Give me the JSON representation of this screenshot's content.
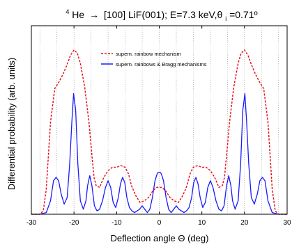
{
  "chart_data": {
    "type": "line",
    "title": {
      "isotope_superscript": "4",
      "species": "He",
      "arrow": "→",
      "system": "[100] LiF(001); E=7.3 keV,θ",
      "angle_subscript": "i",
      "angle_value": "=0.71º"
    },
    "xlabel": "Deflection angle Θ (deg)",
    "ylabel": "Differential probability (arb. units)",
    "xlim": [
      -30,
      30
    ],
    "ylim": [
      0,
      1
    ],
    "xticks": [
      -30,
      -20,
      -10,
      0,
      10,
      20,
      30
    ],
    "xtick_labels": [
      "-30",
      "-20",
      "-10",
      "0",
      "10",
      "20",
      "30"
    ],
    "yticks_labeled": false,
    "gridlines_x": [
      -28,
      -24,
      -20,
      -16,
      -12,
      -8,
      -4,
      0,
      4,
      8,
      12,
      16,
      20,
      24,
      28
    ],
    "legend_position": "top-center",
    "series": [
      {
        "name": "supern. rainbow mechanism",
        "color": "#e8141e",
        "style": "dashed",
        "x": [
          -30,
          -28,
          -27.2,
          -26.5,
          -25.5,
          -24.5,
          -23.5,
          -22.5,
          -21.5,
          -20.8,
          -20,
          -19.2,
          -18.5,
          -17.5,
          -16.5,
          -15.8,
          -15.3,
          -14.8,
          -14,
          -13,
          -12,
          -11,
          -10,
          -9,
          -8,
          -7.2,
          -6.5,
          -5.5,
          -4.5,
          -3.5,
          -2.5,
          -1.5,
          -0.6,
          0,
          0.6,
          1.5,
          2.5,
          3.5,
          4.5,
          5.5,
          6.5,
          7.2,
          8,
          9,
          10,
          11,
          12,
          13,
          14,
          14.8,
          15.3,
          15.8,
          16.5,
          17.5,
          18.5,
          19.2,
          20,
          20.8,
          21.5,
          22.5,
          23.5,
          24.5,
          25.5,
          26.5,
          27.2,
          28,
          30
        ],
        "y": [
          0,
          0,
          0.02,
          0.15,
          0.55,
          0.75,
          0.79,
          0.84,
          0.9,
          0.95,
          0.98,
          0.96,
          0.9,
          0.76,
          0.55,
          0.35,
          0.22,
          0.17,
          0.16,
          0.22,
          0.26,
          0.28,
          0.28,
          0.29,
          0.28,
          0.24,
          0.17,
          0.11,
          0.07,
          0.08,
          0.1,
          0.14,
          0.16,
          0.16,
          0.16,
          0.14,
          0.1,
          0.08,
          0.07,
          0.11,
          0.17,
          0.24,
          0.28,
          0.29,
          0.28,
          0.28,
          0.26,
          0.22,
          0.16,
          0.17,
          0.22,
          0.35,
          0.55,
          0.76,
          0.9,
          0.96,
          0.98,
          0.95,
          0.9,
          0.84,
          0.79,
          0.75,
          0.55,
          0.15,
          0.02,
          0,
          0
        ]
      },
      {
        "name": "supern. rainbows & Bragg mechanisms",
        "color": "#1a1aff",
        "style": "solid",
        "x": [
          -30,
          -28,
          -26.5,
          -25.5,
          -24.8,
          -24.2,
          -23.6,
          -23,
          -22.3,
          -21.6,
          -21,
          -20.5,
          -20.1,
          -19.6,
          -19.1,
          -18.5,
          -17.8,
          -17.2,
          -16.8,
          -16.3,
          -15.8,
          -15.2,
          -14.6,
          -14,
          -13.3,
          -12.6,
          -12,
          -11.4,
          -10.8,
          -10.2,
          -9.6,
          -9.1,
          -8.6,
          -8.1,
          -7.6,
          -7,
          -6.4,
          -5.8,
          -5.2,
          -4.6,
          -4,
          -3.4,
          -2.8,
          -2.2,
          -1.6,
          -1,
          -0.5,
          -0.25,
          0,
          0.25,
          0.5,
          1,
          1.6,
          2.2,
          2.8,
          3.4,
          4,
          4.6,
          5.2,
          5.8,
          6.4,
          7,
          7.6,
          8.1,
          8.6,
          9.1,
          9.6,
          10.2,
          10.8,
          11.4,
          12,
          12.6,
          13.3,
          14,
          14.6,
          15.2,
          15.8,
          16.3,
          16.8,
          17.2,
          17.8,
          18.5,
          19.1,
          19.6,
          20.1,
          20.5,
          21,
          21.6,
          22.3,
          23,
          23.6,
          24.2,
          24.8,
          25.5,
          26.5,
          28,
          30
        ],
        "y": [
          0,
          0,
          0.01,
          0.08,
          0.2,
          0.22,
          0.2,
          0.12,
          0.06,
          0.1,
          0.3,
          0.55,
          0.72,
          0.62,
          0.3,
          0.08,
          0.03,
          0.08,
          0.17,
          0.23,
          0.17,
          0.05,
          0.02,
          0.03,
          0.08,
          0.16,
          0.2,
          0.16,
          0.07,
          0.04,
          0.1,
          0.18,
          0.22,
          0.19,
          0.1,
          0.04,
          0.02,
          0.01,
          0.02,
          0.03,
          0.05,
          0.03,
          0.01,
          0.03,
          0.1,
          0.2,
          0.24,
          0.25,
          0.25,
          0.25,
          0.24,
          0.2,
          0.1,
          0.03,
          0.01,
          0.03,
          0.05,
          0.03,
          0.02,
          0.01,
          0.02,
          0.04,
          0.1,
          0.19,
          0.22,
          0.18,
          0.1,
          0.04,
          0.07,
          0.16,
          0.2,
          0.16,
          0.08,
          0.03,
          0.02,
          0.05,
          0.17,
          0.23,
          0.17,
          0.08,
          0.03,
          0.08,
          0.3,
          0.62,
          0.72,
          0.55,
          0.3,
          0.1,
          0.06,
          0.12,
          0.2,
          0.22,
          0.2,
          0.08,
          0.01,
          0,
          0
        ]
      }
    ]
  }
}
